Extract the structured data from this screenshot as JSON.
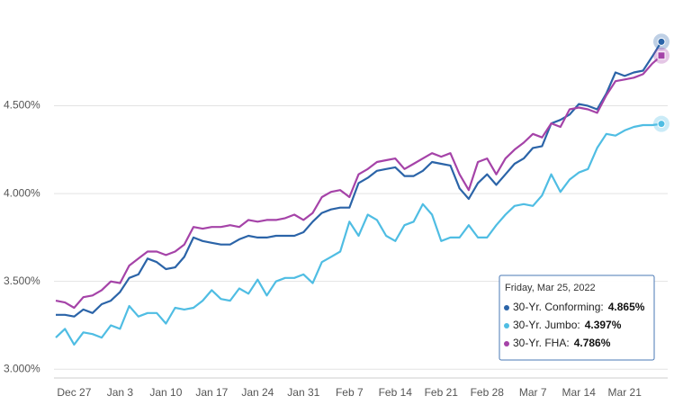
{
  "chart_data": {
    "type": "line",
    "categories": [
      null,
      null,
      "Dec 27",
      null,
      null,
      null,
      null,
      "Jan 3",
      null,
      null,
      null,
      null,
      "Jan 10",
      null,
      null,
      null,
      null,
      "Jan 17",
      null,
      null,
      null,
      null,
      "Jan 24",
      null,
      null,
      null,
      null,
      "Jan 31",
      null,
      null,
      null,
      null,
      "Feb 7",
      null,
      null,
      null,
      null,
      "Feb 14",
      null,
      null,
      null,
      null,
      "Feb 21",
      null,
      null,
      null,
      null,
      "Feb 28",
      null,
      null,
      null,
      null,
      "Mar 7",
      null,
      null,
      null,
      null,
      "Mar 14",
      null,
      null,
      null,
      null,
      "Mar 21",
      null,
      null,
      null,
      null
    ],
    "series": [
      {
        "name": "30-Yr. Conforming:",
        "color": "#2b64a8",
        "marker": "circle",
        "values": [
          3.31,
          3.31,
          3.3,
          3.34,
          3.32,
          3.37,
          3.39,
          3.44,
          3.52,
          3.54,
          3.63,
          3.61,
          3.57,
          3.58,
          3.64,
          3.75,
          3.73,
          3.72,
          3.71,
          3.71,
          3.74,
          3.76,
          3.75,
          3.75,
          3.76,
          3.76,
          3.76,
          3.78,
          3.84,
          3.89,
          3.91,
          3.92,
          3.92,
          4.06,
          4.09,
          4.13,
          4.14,
          4.15,
          4.1,
          4.1,
          4.13,
          4.18,
          4.17,
          4.16,
          4.03,
          3.97,
          4.06,
          4.11,
          4.05,
          4.11,
          4.17,
          4.2,
          4.26,
          4.27,
          4.4,
          4.42,
          4.45,
          4.51,
          4.5,
          4.48,
          4.57,
          4.69,
          4.67,
          4.69,
          4.7,
          4.78,
          4.865
        ]
      },
      {
        "name": "30-Yr. Jumbo:",
        "color": "#4fbde3",
        "marker": "circle",
        "values": [
          3.18,
          3.23,
          3.14,
          3.21,
          3.2,
          3.18,
          3.25,
          3.23,
          3.36,
          3.3,
          3.32,
          3.32,
          3.26,
          3.35,
          3.34,
          3.35,
          3.39,
          3.45,
          3.4,
          3.39,
          3.46,
          3.43,
          3.51,
          3.42,
          3.5,
          3.52,
          3.52,
          3.54,
          3.49,
          3.61,
          3.64,
          3.67,
          3.84,
          3.76,
          3.88,
          3.85,
          3.76,
          3.73,
          3.82,
          3.84,
          3.94,
          3.88,
          3.73,
          3.75,
          3.75,
          3.82,
          3.75,
          3.75,
          3.82,
          3.88,
          3.93,
          3.94,
          3.93,
          3.99,
          4.11,
          4.01,
          4.08,
          4.12,
          4.14,
          4.26,
          4.34,
          4.33,
          4.36,
          4.38,
          4.39,
          4.39,
          4.397
        ]
      },
      {
        "name": "30-Yr. FHA:",
        "color": "#a543a8",
        "marker": "square",
        "values": [
          3.39,
          3.38,
          3.35,
          3.41,
          3.42,
          3.45,
          3.5,
          3.49,
          3.59,
          3.63,
          3.67,
          3.67,
          3.65,
          3.67,
          3.71,
          3.81,
          3.8,
          3.81,
          3.81,
          3.82,
          3.81,
          3.85,
          3.84,
          3.85,
          3.85,
          3.86,
          3.88,
          3.85,
          3.89,
          3.98,
          4.01,
          4.02,
          3.98,
          4.11,
          4.14,
          4.18,
          4.19,
          4.2,
          4.14,
          4.17,
          4.2,
          4.23,
          4.21,
          4.23,
          4.11,
          4.02,
          4.18,
          4.2,
          4.11,
          4.2,
          4.25,
          4.29,
          4.34,
          4.32,
          4.4,
          4.38,
          4.48,
          4.49,
          4.48,
          4.46,
          4.56,
          4.64,
          4.65,
          4.66,
          4.68,
          4.74,
          4.786
        ]
      }
    ],
    "ylim": [
      2.95,
      5.0
    ],
    "yticks": [
      {
        "value": 3.0,
        "label": "3.000%"
      },
      {
        "value": 3.5,
        "label": "3.500%"
      },
      {
        "value": 4.0,
        "label": "4.000%"
      },
      {
        "value": 4.5,
        "label": "4.500%"
      }
    ],
    "grid": true,
    "tooltip": {
      "title": "Friday, Mar 25, 2022",
      "value_labels": [
        "4.865%",
        "4.397%",
        "4.786%"
      ]
    }
  }
}
